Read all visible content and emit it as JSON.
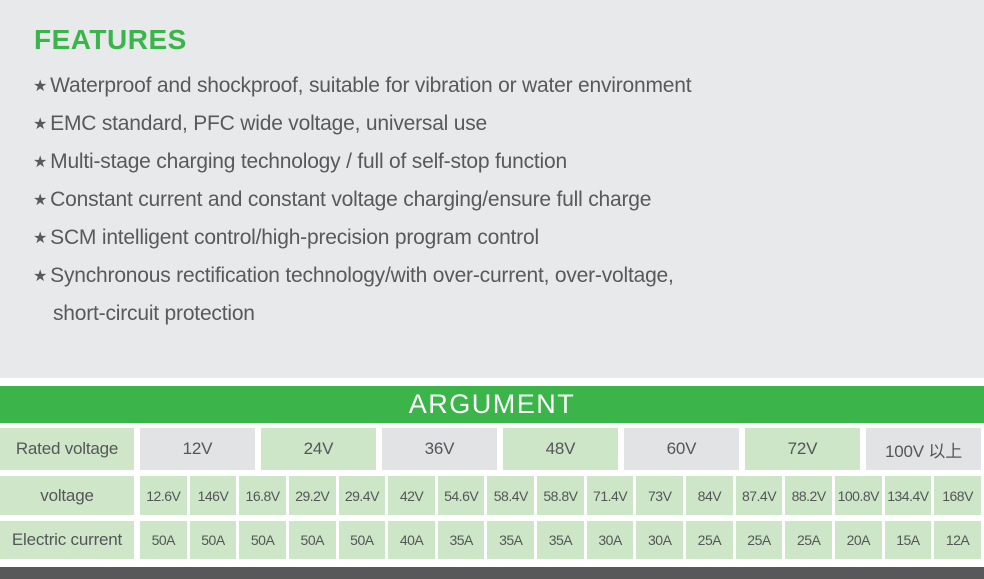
{
  "features": {
    "title": "FEATURES",
    "bullet": "★",
    "items": [
      "Waterproof and shockproof, suitable for vibration or water environment",
      "EMC standard, PFC wide voltage, universal use",
      "Multi-stage charging technology / full of self-stop function",
      "Constant current and constant voltage charging/ensure full charge",
      "SCM intelligent control/high-precision program control",
      "Synchronous rectification technology/with over-current, over-voltage,"
    ],
    "continuation": "short-circuit protection"
  },
  "argument_table": {
    "title": "ARGUMENT",
    "rated_voltage_label": "Rated voltage",
    "rated_voltages": [
      "12V",
      "24V",
      "36V",
      "48V",
      "60V",
      "72V",
      "100V 以上"
    ],
    "voltage_label": "voltage",
    "voltages": [
      "12.6V",
      "146V",
      "16.8V",
      "29.2V",
      "29.4V",
      "42V",
      "54.6V",
      "58.4V",
      "58.8V",
      "71.4V",
      "73V",
      "84V",
      "87.4V",
      "88.2V",
      "100.8V",
      "134.4V",
      "168V"
    ],
    "current_label": "Electric current",
    "currents": [
      "50A",
      "50A",
      "50A",
      "50A",
      "50A",
      "40A",
      "35A",
      "35A",
      "35A",
      "30A",
      "30A",
      "25A",
      "25A",
      "25A",
      "20A",
      "15A",
      "12A"
    ]
  },
  "colors": {
    "accent_green": "#3bb54a",
    "cell_green": "#cde6c7",
    "label_green": "#cfe6c9",
    "cell_gray": "#e2e3e5",
    "panel_bg": "#e8e9eb",
    "text_gray": "#58595b",
    "bottom_bar": "#58585a",
    "header_text": "#ffffff"
  }
}
